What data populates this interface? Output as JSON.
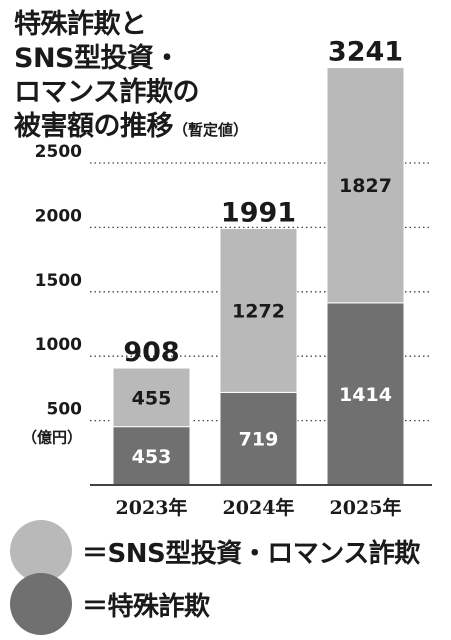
{
  "title_lines": [
    "特殊詐欺と",
    "SNS型投資・",
    "ロマンス詐欺の",
    "被害額の推移"
  ],
  "title_note": "（暫定値）",
  "colors": {
    "investment": "#b9b9b9",
    "fraud": "#707070",
    "grid": "#444444",
    "text": "#1a1a1a"
  },
  "legend": [
    {
      "label": "＝SNS型投資・ロマンス詐欺",
      "color": "#b9b9b9"
    },
    {
      "label": "＝特殊詐欺",
      "color": "#707070"
    }
  ],
  "chart_data": {
    "type": "bar",
    "stacked": true,
    "categories": [
      "2023年",
      "2024年",
      "2025年"
    ],
    "series": [
      {
        "name": "特殊詐欺",
        "values": [
          453,
          719,
          1414
        ]
      },
      {
        "name": "SNS型投資・ロマンス詐欺",
        "values": [
          455,
          1272,
          1827
        ]
      }
    ],
    "totals": [
      908,
      1991,
      3241
    ],
    "yticks": [
      500,
      1000,
      1500,
      2000,
      2500
    ],
    "ylabel": "（億円）",
    "ylim": [
      0,
      3300
    ],
    "grid": true,
    "legend_position": "bottom"
  }
}
